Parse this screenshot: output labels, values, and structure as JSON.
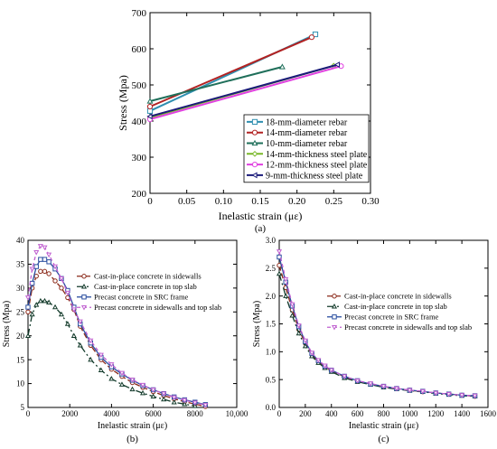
{
  "chart_data": [
    {
      "id": "a",
      "type": "line",
      "panel_label": "(a)",
      "xlabel": "Inelastic strain (με)",
      "ylabel": "Stress (Mpa)",
      "xlim": [
        0,
        0.3
      ],
      "ylim": [
        200,
        700
      ],
      "xticks": [
        "0",
        "0.05",
        "0.10",
        "0.15",
        "0.20",
        "0.25",
        "0.30"
      ],
      "yticks": [
        "200",
        "300",
        "400",
        "500",
        "600",
        "700"
      ],
      "xtick_values": [
        0,
        0.05,
        0.1,
        0.15,
        0.2,
        0.25,
        0.3
      ],
      "ytick_values": [
        200,
        300,
        400,
        500,
        600,
        700
      ],
      "legend_position": "lower-right",
      "series": [
        {
          "name": "18-mm-diameter rebar",
          "color": "#2f8fb0",
          "marker": "square",
          "x": [
            0,
            0.225
          ],
          "y": [
            428,
            640
          ]
        },
        {
          "name": "14-mm-diameter rebar",
          "color": "#b22222",
          "marker": "circle",
          "x": [
            0,
            0.22
          ],
          "y": [
            440,
            632
          ]
        },
        {
          "name": "10-mm-diameter rebar",
          "color": "#1f6f5a",
          "marker": "triangle",
          "x": [
            0,
            0.18
          ],
          "y": [
            455,
            550
          ]
        },
        {
          "name": "14-mm-thickness steel plate",
          "color": "#7ab829",
          "marker": "diamond",
          "x": [
            0,
            0.25
          ],
          "y": [
            410,
            553
          ]
        },
        {
          "name": "12-mm-thickness steel plate",
          "color": "#e040e0",
          "marker": "circle",
          "x": [
            0,
            0.26
          ],
          "y": [
            405,
            552
          ]
        },
        {
          "name": "9-mm-thickness steel plate",
          "color": "#1a1a7a",
          "marker": "triangle-left",
          "x": [
            0,
            0.255
          ],
          "y": [
            413,
            556
          ]
        }
      ]
    },
    {
      "id": "b",
      "type": "line",
      "panel_label": "(b)",
      "xlabel": "Inelastic strain (με)",
      "ylabel": "Stress (Mpa)",
      "xlim": [
        0,
        10000
      ],
      "ylim": [
        5,
        40
      ],
      "xticks": [
        "0",
        "2000",
        "4000",
        "6000",
        "8000",
        "10,000"
      ],
      "yticks": [
        "5",
        "10",
        "15",
        "20",
        "25",
        "30",
        "35",
        "40"
      ],
      "xtick_values": [
        0,
        2000,
        4000,
        6000,
        8000,
        10000
      ],
      "ytick_values": [
        5,
        10,
        15,
        20,
        25,
        30,
        35,
        40
      ],
      "legend_position": "top-right",
      "series": [
        {
          "name": "Cast-in-place concrete in sidewalls",
          "color": "#8b2a1a",
          "dash": "6,3",
          "marker": "circle",
          "x": [
            0,
            200,
            400,
            600,
            800,
            1000,
            1300,
            1600,
            1900,
            2200,
            2500,
            3000,
            3500,
            4000,
            4500,
            5000,
            5500,
            6000,
            6500,
            7000,
            7500,
            8000,
            8500
          ],
          "y": [
            25,
            30,
            32.5,
            33.5,
            33.5,
            33,
            31.5,
            30,
            28,
            25.5,
            22,
            18,
            15,
            13,
            11.5,
            10.2,
            9.2,
            8.3,
            7.5,
            6.8,
            6.2,
            5.7,
            5.2
          ]
        },
        {
          "name": "Cast-in-place concrete in top slab",
          "color": "#123a2a",
          "dash": "8,3,2,3",
          "marker": "triangle",
          "x": [
            0,
            200,
            400,
            600,
            800,
            1000,
            1300,
            1600,
            1900,
            2200,
            2500,
            3000,
            3500,
            4000,
            4500,
            5000,
            5500,
            6000,
            6500,
            7000,
            7500,
            8000
          ],
          "y": [
            20,
            24.5,
            26.5,
            27.3,
            27.3,
            27,
            26,
            24.5,
            22.5,
            20,
            18,
            15,
            12.8,
            11,
            9.8,
            8.8,
            8,
            7.3,
            6.7,
            6.1,
            5.7,
            5.3
          ]
        },
        {
          "name": "Precast concrete in SRC frame",
          "color": "#2b4fa0",
          "dash": "",
          "marker": "square",
          "x": [
            0,
            200,
            400,
            600,
            800,
            1000,
            1300,
            1600,
            1900,
            2200,
            2500,
            3000,
            3500,
            4000,
            4500,
            5000,
            5500,
            6000,
            6500,
            7000,
            7500,
            8000,
            8500
          ],
          "y": [
            26,
            31,
            34.5,
            36,
            36,
            35.5,
            34,
            32,
            29.5,
            26,
            22.5,
            18.5,
            15.5,
            13.5,
            12,
            10.7,
            9.6,
            8.7,
            7.9,
            7.2,
            6.6,
            6.1,
            5.6
          ]
        },
        {
          "name": "Precast concrete in sidewalls and top slab",
          "color": "#c060d0",
          "dash": "4,3",
          "marker": "triangle-down",
          "x": [
            0,
            200,
            400,
            600,
            800,
            1000,
            1300,
            1600,
            1900,
            2200,
            2500,
            3000,
            3500,
            4000,
            4500,
            5000,
            5500,
            6000,
            6500,
            7000,
            7500,
            8000,
            8500
          ],
          "y": [
            28,
            34,
            37.5,
            38.8,
            38.5,
            37,
            34.5,
            32,
            29,
            25.5,
            23,
            19,
            16,
            14,
            12.2,
            10.8,
            9.7,
            8.7,
            7.9,
            7.1,
            6.5,
            6,
            5.5
          ]
        }
      ]
    },
    {
      "id": "c",
      "type": "line",
      "panel_label": "(c)",
      "xlabel": "Inelastic strain (με)",
      "ylabel": "Stress (Mpa)",
      "xlim": [
        0,
        1600
      ],
      "ylim": [
        0,
        3.0
      ],
      "xticks": [
        "0",
        "200",
        "400",
        "600",
        "800",
        "1000",
        "1200",
        "1400",
        "1600"
      ],
      "yticks": [
        "0.0",
        "0.5",
        "1.0",
        "1.5",
        "2.0",
        "2.5",
        "3.0"
      ],
      "xtick_values": [
        0,
        200,
        400,
        600,
        800,
        1000,
        1200,
        1400,
        1600
      ],
      "ytick_values": [
        0,
        0.5,
        1.0,
        1.5,
        2.0,
        2.5,
        3.0
      ],
      "legend_position": "top-right",
      "series": [
        {
          "name": "Cast-in-place concrete in sidewalls",
          "color": "#8b2a1a",
          "dash": "6,3",
          "marker": "circle",
          "x": [
            0,
            50,
            100,
            150,
            200,
            250,
            300,
            350,
            400,
            500,
            600,
            700,
            800,
            900,
            1000,
            1100,
            1200,
            1300,
            1400,
            1500
          ],
          "y": [
            2.55,
            2.15,
            1.75,
            1.4,
            1.15,
            0.95,
            0.82,
            0.73,
            0.66,
            0.55,
            0.47,
            0.42,
            0.37,
            0.34,
            0.31,
            0.28,
            0.26,
            0.24,
            0.22,
            0.2
          ]
        },
        {
          "name": "Cast-in-place concrete in top slab",
          "color": "#123a2a",
          "dash": "8,3,2,3",
          "marker": "triangle",
          "x": [
            0,
            50,
            100,
            150,
            200,
            250,
            300,
            350,
            400,
            500,
            600,
            700,
            800,
            900,
            1000,
            1100,
            1200,
            1300,
            1400,
            1500
          ],
          "y": [
            2.4,
            2.0,
            1.65,
            1.33,
            1.1,
            0.92,
            0.8,
            0.71,
            0.64,
            0.53,
            0.46,
            0.41,
            0.36,
            0.33,
            0.3,
            0.28,
            0.25,
            0.23,
            0.21,
            0.2
          ]
        },
        {
          "name": "Precast concrete in SRC frame",
          "color": "#2b4fa0",
          "dash": "",
          "marker": "square",
          "x": [
            0,
            50,
            100,
            150,
            200,
            250,
            300,
            350,
            400,
            500,
            600,
            700,
            800,
            900,
            1000,
            1100,
            1200,
            1300,
            1400,
            1500
          ],
          "y": [
            2.7,
            2.25,
            1.82,
            1.45,
            1.18,
            0.97,
            0.84,
            0.74,
            0.67,
            0.56,
            0.48,
            0.42,
            0.38,
            0.34,
            0.31,
            0.29,
            0.26,
            0.24,
            0.22,
            0.21
          ]
        },
        {
          "name": "Precast concrete in sidewalls and top slab",
          "color": "#c060d0",
          "dash": "4,3",
          "marker": "triangle-down",
          "x": [
            0,
            50,
            100,
            150,
            200,
            250,
            300,
            350,
            400,
            500,
            600,
            700,
            800,
            900,
            1000,
            1100,
            1200,
            1300,
            1400,
            1500
          ],
          "y": [
            2.8,
            2.3,
            1.85,
            1.47,
            1.2,
            0.98,
            0.85,
            0.75,
            0.67,
            0.56,
            0.48,
            0.43,
            0.38,
            0.34,
            0.31,
            0.29,
            0.26,
            0.24,
            0.22,
            0.21
          ]
        }
      ]
    }
  ]
}
